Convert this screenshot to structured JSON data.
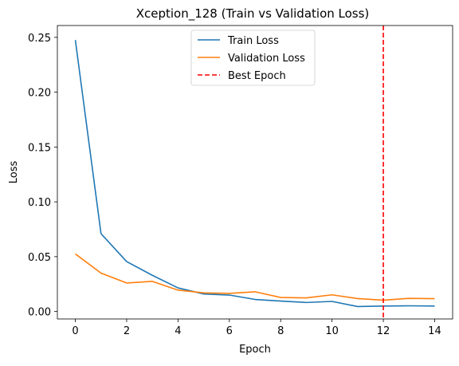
{
  "chart_data": {
    "type": "line",
    "title": "Xception_128 (Train vs Validation Loss)",
    "xlabel": "Epoch",
    "ylabel": "Loss",
    "x": [
      0,
      1,
      2,
      3,
      4,
      5,
      6,
      7,
      8,
      9,
      10,
      11,
      12,
      13,
      14
    ],
    "xticks": [
      0,
      2,
      4,
      6,
      8,
      10,
      12,
      14
    ],
    "yticks": [
      0.0,
      0.05,
      0.1,
      0.15,
      0.2,
      0.25
    ],
    "ytick_labels": [
      "0.00",
      "0.05",
      "0.10",
      "0.15",
      "0.20",
      "0.25"
    ],
    "xlim": [
      -0.7,
      14.7
    ],
    "ylim": [
      -0.0068,
      0.2608
    ],
    "grid": false,
    "legend_position": "top-center",
    "series": [
      {
        "name": "Train Loss",
        "color": "#1f77b4",
        "values": [
          0.2475,
          0.071,
          0.0455,
          0.033,
          0.0215,
          0.016,
          0.015,
          0.011,
          0.0095,
          0.0082,
          0.0092,
          0.0045,
          0.005,
          0.0052,
          0.005
        ]
      },
      {
        "name": "Validation Loss",
        "color": "#ff7f0e",
        "values": [
          0.0525,
          0.035,
          0.026,
          0.0275,
          0.0195,
          0.017,
          0.0165,
          0.018,
          0.0128,
          0.0124,
          0.0152,
          0.0118,
          0.0103,
          0.012,
          0.0117
        ]
      }
    ],
    "vline": {
      "name": "Best Epoch",
      "x": 12,
      "color": "#ff0000",
      "style": "dashed"
    }
  }
}
